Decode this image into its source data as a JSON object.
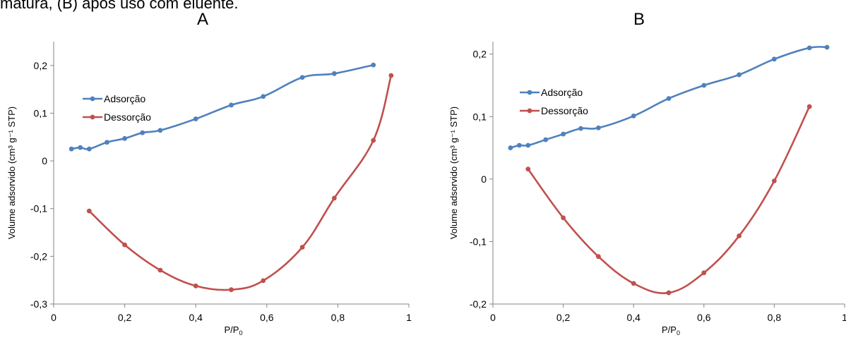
{
  "caption": "matura, (B) após uso com eluente.",
  "chart_data": [
    {
      "type": "line",
      "panel_label": "A",
      "xlabel": "P/P",
      "xlabel_sub": "0",
      "ylabel": "Volume adsorvido (cm³ g⁻¹ STP)",
      "xlim": [
        0,
        1
      ],
      "ylim": [
        -0.3,
        0.25
      ],
      "xticks": [
        0,
        0.2,
        0.4,
        0.6,
        0.8,
        1
      ],
      "xtick_labels": [
        "0",
        "0,2",
        "0,4",
        "0,6",
        "0,8",
        "1"
      ],
      "yticks": [
        -0.3,
        -0.2,
        -0.1,
        0,
        0.1,
        0.2
      ],
      "ytick_labels": [
        "-0,3",
        "-0,2",
        "-0,1",
        "0",
        "0,1",
        "0,2"
      ],
      "grid": false,
      "legend_position": "upper-left",
      "series": [
        {
          "name": "Adsorção",
          "color": "#4f81bd",
          "x": [
            0.05,
            0.075,
            0.1,
            0.15,
            0.2,
            0.25,
            0.3,
            0.4,
            0.5,
            0.59,
            0.7,
            0.79,
            0.9
          ],
          "y": [
            0.025,
            0.028,
            0.025,
            0.039,
            0.047,
            0.059,
            0.064,
            0.088,
            0.117,
            0.135,
            0.175,
            0.183,
            0.201
          ]
        },
        {
          "name": "Dessorção",
          "color": "#c0504d",
          "x": [
            0.1,
            0.2,
            0.3,
            0.4,
            0.5,
            0.59,
            0.7,
            0.79,
            0.9,
            0.95
          ],
          "y": [
            -0.105,
            -0.176,
            -0.229,
            -0.262,
            -0.27,
            -0.251,
            -0.181,
            -0.078,
            0.043,
            0.179
          ]
        }
      ]
    },
    {
      "type": "line",
      "panel_label": "B",
      "xlabel": "P/P",
      "xlabel_sub": "0",
      "ylabel": "Volume adsorvido (cm³ g⁻¹ STP)",
      "xlim": [
        0,
        1
      ],
      "ylim": [
        -0.2,
        0.22
      ],
      "xticks": [
        0,
        0.2,
        0.4,
        0.6,
        0.8,
        1
      ],
      "xtick_labels": [
        "0",
        "0,2",
        "0,4",
        "0,6",
        "0,8",
        "1"
      ],
      "yticks": [
        -0.2,
        -0.1,
        0,
        0.1,
        0.2
      ],
      "ytick_labels": [
        "-0,2",
        "-0,1",
        "0",
        "0,1",
        "0,2"
      ],
      "grid": false,
      "legend_position": "upper-left",
      "series": [
        {
          "name": "Adsorção",
          "color": "#4f81bd",
          "x": [
            0.05,
            0.075,
            0.1,
            0.15,
            0.2,
            0.25,
            0.3,
            0.4,
            0.5,
            0.6,
            0.7,
            0.8,
            0.9,
            0.95
          ],
          "y": [
            0.05,
            0.054,
            0.054,
            0.063,
            0.072,
            0.081,
            0.082,
            0.101,
            0.129,
            0.15,
            0.167,
            0.192,
            0.21,
            0.211
          ]
        },
        {
          "name": "Dessorção",
          "color": "#c0504d",
          "x": [
            0.1,
            0.2,
            0.3,
            0.4,
            0.5,
            0.6,
            0.7,
            0.8,
            0.9
          ],
          "y": [
            0.016,
            -0.062,
            -0.124,
            -0.167,
            -0.182,
            -0.15,
            -0.091,
            -0.003,
            0.116
          ]
        }
      ]
    }
  ]
}
